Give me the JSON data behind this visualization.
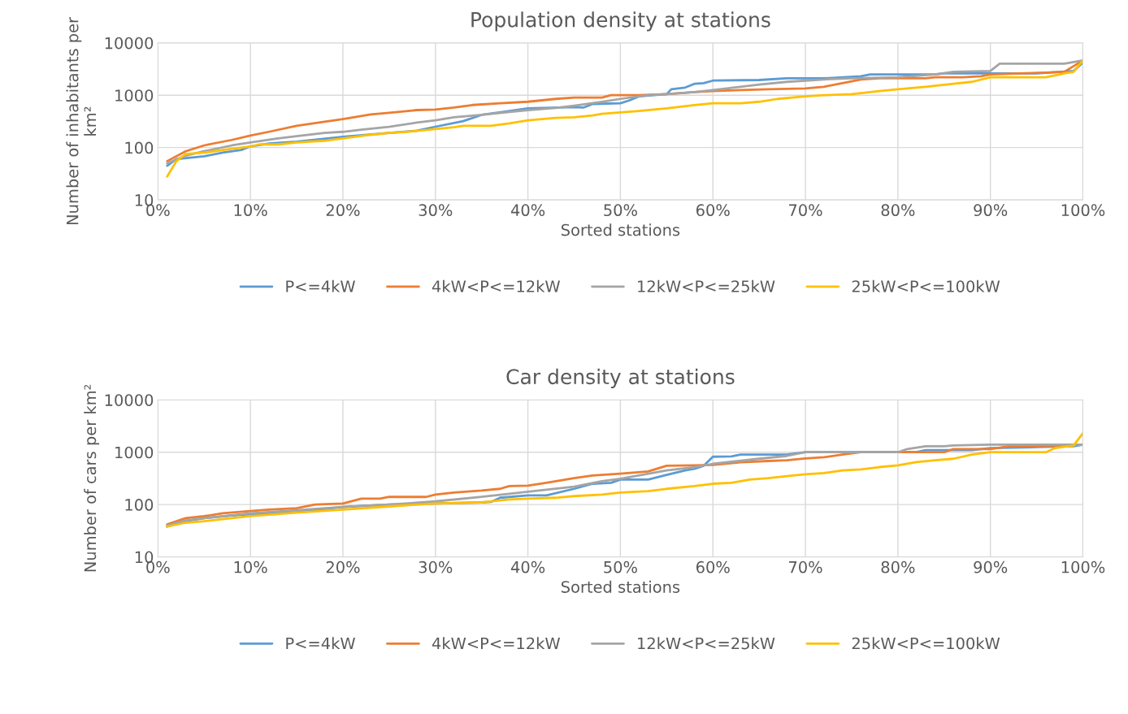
{
  "chart_data": [
    {
      "type": "line",
      "title": "Population density at stations",
      "xlabel": "Sorted stations",
      "ylabel": "Number of inhabitants per km²",
      "log": "y",
      "grid": true,
      "legend": "bottom",
      "xlim": [
        0,
        100
      ],
      "ylim": [
        10,
        10000
      ],
      "xticks": [
        {
          "value": 0,
          "label": "0%"
        },
        {
          "value": 10,
          "label": "10%"
        },
        {
          "value": 20,
          "label": "20%"
        },
        {
          "value": 30,
          "label": "30%"
        },
        {
          "value": 40,
          "label": "40%"
        },
        {
          "value": 50,
          "label": "50%"
        },
        {
          "value": 60,
          "label": "60%"
        },
        {
          "value": 70,
          "label": "70%"
        },
        {
          "value": 80,
          "label": "80%"
        },
        {
          "value": 90,
          "label": "90%"
        },
        {
          "value": 100,
          "label": "100%"
        }
      ],
      "yticks": [
        10,
        100,
        1000,
        10000
      ],
      "series": [
        {
          "name": "P<=4kW",
          "color": "#5b9bd5",
          "x": [
            1,
            2,
            5,
            7,
            9,
            10,
            12,
            15,
            20,
            25,
            28,
            30,
            33,
            35,
            38,
            40,
            45,
            46,
            47,
            50,
            51,
            52,
            55,
            55.5,
            57,
            58,
            59,
            60,
            65,
            68,
            72,
            76,
            77,
            80,
            84,
            85,
            90,
            95,
            99,
            100
          ],
          "values": [
            45,
            60,
            68,
            80,
            90,
            105,
            120,
            130,
            160,
            190,
            210,
            250,
            320,
            420,
            500,
            560,
            590,
            580,
            680,
            700,
            800,
            950,
            1050,
            1300,
            1400,
            1650,
            1700,
            1900,
            1950,
            2100,
            2100,
            2300,
            2500,
            2500,
            2500,
            2600,
            2600,
            2600,
            2900,
            4200
          ]
        },
        {
          "name": "4kW<P<=12kW",
          "color": "#ed7d31",
          "x": [
            1,
            3,
            5,
            8,
            10,
            12,
            15,
            18,
            20,
            23,
            25,
            28,
            30,
            32,
            34,
            37,
            40,
            43,
            45,
            48,
            49,
            52,
            55,
            58,
            60,
            63,
            66,
            70,
            72,
            74,
            76,
            78,
            83,
            84,
            87,
            89,
            90,
            93,
            96,
            98,
            100
          ],
          "values": [
            55,
            85,
            110,
            140,
            170,
            200,
            260,
            310,
            350,
            430,
            460,
            520,
            530,
            580,
            650,
            700,
            750,
            850,
            900,
            900,
            1000,
            1000,
            1050,
            1150,
            1200,
            1250,
            1300,
            1350,
            1450,
            1700,
            2000,
            2100,
            2100,
            2200,
            2200,
            2300,
            2500,
            2600,
            2700,
            2800,
            4600
          ]
        },
        {
          "name": "12kW<P<=25kW",
          "color": "#a5a5a5",
          "x": [
            1,
            3,
            5,
            8,
            10,
            13,
            15,
            18,
            20,
            22,
            25,
            28,
            30,
            32,
            35,
            38,
            40,
            43,
            45,
            48,
            50,
            53,
            55,
            58,
            60,
            65,
            68,
            72,
            75,
            80,
            84,
            86,
            90,
            91,
            98,
            100
          ],
          "values": [
            50,
            70,
            85,
            110,
            125,
            150,
            165,
            190,
            200,
            220,
            250,
            300,
            330,
            380,
            420,
            480,
            520,
            570,
            630,
            750,
            850,
            1000,
            1050,
            1150,
            1250,
            1600,
            1800,
            2000,
            2100,
            2200,
            2500,
            2800,
            2900,
            4000,
            4000,
            4600
          ]
        },
        {
          "name": "25kW<P<=100kW",
          "color": "#ffc000",
          "x": [
            1,
            2,
            3,
            5,
            8,
            10,
            11,
            13,
            15,
            18,
            20,
            23,
            25,
            27,
            30,
            32,
            33,
            36,
            38,
            40,
            43,
            45,
            47,
            48,
            50,
            52,
            55,
            58,
            60,
            63,
            65,
            67,
            70,
            72,
            75,
            78,
            80,
            83,
            86,
            88,
            90,
            96,
            98,
            99,
            100
          ],
          "values": [
            28,
            55,
            75,
            80,
            95,
            105,
            115,
            115,
            125,
            135,
            150,
            175,
            190,
            200,
            225,
            245,
            260,
            260,
            290,
            330,
            370,
            380,
            410,
            440,
            470,
            500,
            560,
            650,
            700,
            700,
            750,
            850,
            950,
            1000,
            1050,
            1200,
            1300,
            1450,
            1650,
            1800,
            2200,
            2200,
            2600,
            2800,
            4600
          ]
        }
      ]
    },
    {
      "type": "line",
      "title": "Car density at stations",
      "xlabel": "Sorted stations",
      "ylabel": "Number of cars per km²",
      "log": "y",
      "grid": true,
      "legend": "bottom",
      "xlim": [
        0,
        100
      ],
      "ylim": [
        10,
        10000
      ],
      "xticks": [
        {
          "value": 0,
          "label": "0%"
        },
        {
          "value": 10,
          "label": "10%"
        },
        {
          "value": 20,
          "label": "20%"
        },
        {
          "value": 30,
          "label": "30%"
        },
        {
          "value": 40,
          "label": "40%"
        },
        {
          "value": 50,
          "label": "50%"
        },
        {
          "value": 60,
          "label": "60%"
        },
        {
          "value": 70,
          "label": "70%"
        },
        {
          "value": 80,
          "label": "80%"
        },
        {
          "value": 90,
          "label": "90%"
        },
        {
          "value": 100,
          "label": "100%"
        }
      ],
      "yticks": [
        10,
        100,
        1000,
        10000
      ],
      "series": [
        {
          "name": "P<=4kW",
          "color": "#5b9bd5",
          "x": [
            1,
            3,
            5,
            8,
            10,
            15,
            20,
            25,
            30,
            35,
            36,
            37,
            40,
            42,
            45,
            47,
            49,
            50,
            53,
            55,
            57,
            58,
            59,
            60,
            62,
            63,
            68,
            70,
            80,
            82,
            83,
            88,
            90,
            95,
            99,
            100
          ],
          "values": [
            38,
            48,
            55,
            62,
            65,
            72,
            90,
            100,
            105,
            110,
            112,
            135,
            150,
            150,
            200,
            250,
            260,
            300,
            300,
            370,
            450,
            480,
            550,
            820,
            830,
            900,
            900,
            1000,
            1000,
            1000,
            1100,
            1100,
            1200,
            1250,
            1300,
            1400
          ]
        },
        {
          "name": "4kW<P<=12kW",
          "color": "#ed7d31",
          "x": [
            1,
            3,
            5,
            7,
            10,
            12,
            15,
            17,
            20,
            22,
            24,
            25,
            29,
            30,
            32,
            35,
            37,
            38,
            40,
            42,
            45,
            47,
            50,
            53,
            55,
            58,
            60,
            63,
            66,
            68,
            70,
            72,
            74,
            76,
            80,
            85,
            86,
            90,
            92,
            95,
            100
          ],
          "values": [
            42,
            55,
            60,
            68,
            75,
            80,
            85,
            100,
            105,
            130,
            130,
            140,
            140,
            155,
            170,
            185,
            200,
            225,
            230,
            260,
            320,
            360,
            390,
            430,
            550,
            560,
            570,
            640,
            680,
            700,
            760,
            800,
            900,
            1000,
            1000,
            1000,
            1150,
            1150,
            1300,
            1300,
            1400
          ]
        },
        {
          "name": "12kW<P<=25kW",
          "color": "#a5a5a5",
          "x": [
            1,
            3,
            5,
            10,
            15,
            20,
            25,
            30,
            35,
            40,
            45,
            48,
            50,
            55,
            58,
            60,
            65,
            68,
            70,
            80,
            81,
            83,
            85,
            86,
            90,
            99,
            100
          ],
          "values": [
            40,
            50,
            55,
            68,
            78,
            90,
            100,
            115,
            140,
            175,
            220,
            280,
            310,
            450,
            520,
            600,
            750,
            850,
            1000,
            1000,
            1150,
            1300,
            1300,
            1350,
            1400,
            1400,
            1400
          ]
        },
        {
          "name": "25kW<P<=100kW",
          "color": "#ffc000",
          "x": [
            1,
            3,
            5,
            8,
            10,
            15,
            20,
            25,
            30,
            35,
            38,
            40,
            43,
            45,
            48,
            50,
            53,
            55,
            58,
            60,
            62,
            64,
            66,
            68,
            70,
            72,
            74,
            76,
            78,
            80,
            82,
            84,
            86,
            88,
            90,
            96,
            97,
            99,
            100
          ],
          "values": [
            38,
            45,
            48,
            55,
            60,
            70,
            80,
            92,
            105,
            110,
            125,
            130,
            135,
            145,
            155,
            170,
            180,
            200,
            225,
            250,
            260,
            300,
            320,
            350,
            380,
            400,
            450,
            470,
            520,
            560,
            650,
            700,
            750,
            900,
            1000,
            1000,
            1200,
            1350,
            2300
          ]
        }
      ]
    }
  ]
}
